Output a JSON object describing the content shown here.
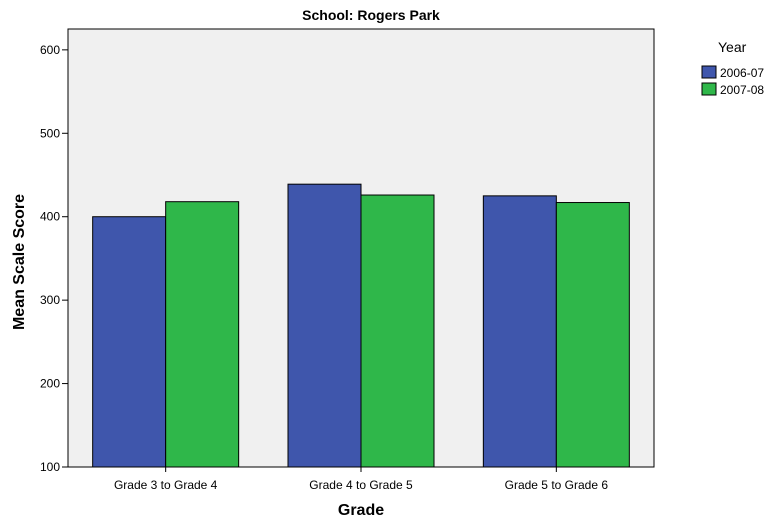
{
  "chart_data": {
    "type": "bar",
    "title": "School: Rogers Park",
    "xlabel": "Grade",
    "ylabel": "Mean Scale Score",
    "categories": [
      "Grade 3 to Grade 4",
      "Grade 4 to Grade 5",
      "Grade 5 to Grade 6"
    ],
    "series": [
      {
        "name": "2006-07",
        "values": [
          400,
          439,
          425
        ],
        "color": "#3f56ac"
      },
      {
        "name": "2007-08",
        "values": [
          418,
          426,
          417
        ],
        "color": "#2fb74a"
      }
    ],
    "ylim": [
      100,
      625
    ],
    "yticks": [
      100,
      200,
      300,
      400,
      500,
      600
    ],
    "legend_title": "Year",
    "legend_position": "top-right",
    "plot_background": "#f0f0f0",
    "grid": false
  }
}
